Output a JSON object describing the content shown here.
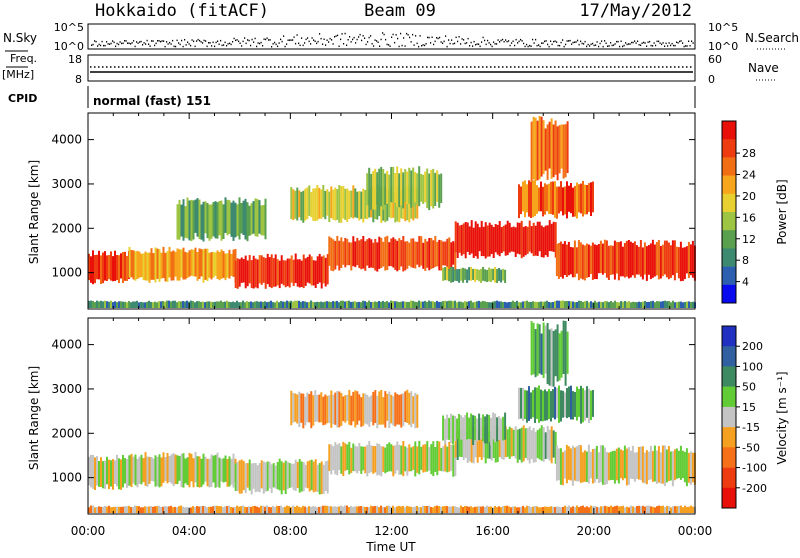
{
  "header": {
    "title": "Hokkaido (fitACF)",
    "beam": "Beam 09",
    "date": "17/May/2012"
  },
  "top_panels": {
    "nsky_label": "N.Sky",
    "nsky_ticks": [
      "10^5",
      "10^0"
    ],
    "nsearch_label": "N.Search",
    "nsearch_ticks": [
      "10^5",
      "10^0"
    ],
    "freq_label": "Freq.",
    "freq_unit": "[MHz]",
    "freq_ticks": [
      "18",
      "8"
    ],
    "nave_label": "Nave",
    "nave_ticks": [
      "60",
      "0"
    ],
    "cpid_label": "CPID",
    "cpid_text": "normal (fast) 151"
  },
  "x_axis": {
    "label": "Time UT",
    "ticks": [
      "00:00",
      "04:00",
      "08:00",
      "12:00",
      "16:00",
      "20:00",
      "00:00"
    ]
  },
  "chart_data": [
    {
      "type": "heatmap",
      "title": "",
      "xlabel": "Time UT",
      "ylabel": "Slant Range [km]",
      "x_ticks": [
        "00:00",
        "04:00",
        "08:00",
        "12:00",
        "16:00",
        "20:00",
        "00:00"
      ],
      "y_ticks": [
        1000,
        2000,
        3000,
        4000
      ],
      "xlim_hours": [
        0,
        24
      ],
      "ylim_km": [
        180,
        4600
      ],
      "colorbar": {
        "label": "Power [dB]",
        "ticks": [
          "4",
          "8",
          "12",
          "16",
          "20",
          "24",
          "28"
        ],
        "colors": [
          "#0a0aee",
          "#2d5fb0",
          "#3e8a70",
          "#5aa04e",
          "#9ec444",
          "#e8d030",
          "#f7a51c",
          "#f26e14",
          "#ee3c10",
          "#e81008"
        ]
      },
      "regions": [
        {
          "t0": 0.0,
          "t1": 1.6,
          "r0": 800,
          "r1": 1450,
          "level": 0.85
        },
        {
          "t0": 1.6,
          "t1": 5.8,
          "r0": 850,
          "r1": 1500,
          "level": 0.65
        },
        {
          "t0": 5.8,
          "t1": 9.5,
          "r0": 700,
          "r1": 1350,
          "level": 0.9
        },
        {
          "t0": 9.5,
          "t1": 14.5,
          "r0": 1100,
          "r1": 1750,
          "level": 0.85
        },
        {
          "t0": 14.5,
          "t1": 18.5,
          "r0": 1400,
          "r1": 2100,
          "level": 0.95
        },
        {
          "t0": 18.5,
          "t1": 24.0,
          "r0": 900,
          "r1": 1650,
          "level": 0.9
        },
        {
          "t0": 8.0,
          "t1": 13.0,
          "r0": 2200,
          "r1": 2900,
          "level": 0.5
        },
        {
          "t0": 11.0,
          "t1": 14.0,
          "r0": 2500,
          "r1": 3300,
          "level": 0.45
        },
        {
          "t0": 17.0,
          "t1": 20.0,
          "r0": 2300,
          "r1": 3000,
          "level": 0.8
        },
        {
          "t0": 17.5,
          "t1": 19.0,
          "r0": 3200,
          "r1": 4400,
          "level": 0.75
        },
        {
          "t0": 3.5,
          "t1": 7.0,
          "r0": 1800,
          "r1": 2600,
          "level": 0.35
        },
        {
          "t0": 14.0,
          "t1": 16.5,
          "r0": 800,
          "r1": 1100,
          "level": 0.4
        },
        {
          "t0": 0.0,
          "t1": 24.0,
          "r0": 180,
          "r1": 350,
          "level": 0.3
        }
      ]
    },
    {
      "type": "heatmap",
      "title": "",
      "xlabel": "Time UT",
      "ylabel": "Slant Range [km]",
      "x_ticks": [
        "00:00",
        "04:00",
        "08:00",
        "12:00",
        "16:00",
        "20:00",
        "00:00"
      ],
      "y_ticks": [
        1000,
        2000,
        3000,
        4000
      ],
      "xlim_hours": [
        0,
        24
      ],
      "ylim_km": [
        180,
        4600
      ],
      "colorbar": {
        "label": "Velocity [m s^-1]",
        "ticks": [
          "200",
          "100",
          "50",
          "15",
          "-15",
          "-50",
          "-100",
          "-200"
        ],
        "colors": [
          "#2030c0",
          "#3060a0",
          "#3e8a60",
          "#62cc36",
          "#c4c4c4",
          "#f5a020",
          "#f57018",
          "#ee3c10",
          "#e81008"
        ]
      },
      "regions": [
        {
          "t0": 0.0,
          "t1": 1.6,
          "r0": 800,
          "r1": 1450,
          "level": 0.5
        },
        {
          "t0": 1.6,
          "t1": 5.8,
          "r0": 850,
          "r1": 1500,
          "level": 0.5
        },
        {
          "t0": 5.8,
          "t1": 9.5,
          "r0": 700,
          "r1": 1350,
          "level": 0.5
        },
        {
          "t0": 9.5,
          "t1": 14.5,
          "r0": 1100,
          "r1": 1750,
          "level": 0.5
        },
        {
          "t0": 14.5,
          "t1": 18.5,
          "r0": 1400,
          "r1": 2100,
          "level": 0.45
        },
        {
          "t0": 18.5,
          "t1": 24.0,
          "r0": 900,
          "r1": 1650,
          "level": 0.5
        },
        {
          "t0": 8.0,
          "t1": 13.0,
          "r0": 2200,
          "r1": 2900,
          "level": 0.62
        },
        {
          "t0": 14.0,
          "t1": 16.5,
          "r0": 1800,
          "r1": 2400,
          "level": 0.4
        },
        {
          "t0": 17.0,
          "t1": 20.0,
          "r0": 2300,
          "r1": 3000,
          "level": 0.35
        },
        {
          "t0": 17.5,
          "t1": 19.0,
          "r0": 3200,
          "r1": 4400,
          "level": 0.35
        },
        {
          "t0": 0.0,
          "t1": 24.0,
          "r0": 180,
          "r1": 350,
          "level": 0.6
        }
      ]
    }
  ]
}
